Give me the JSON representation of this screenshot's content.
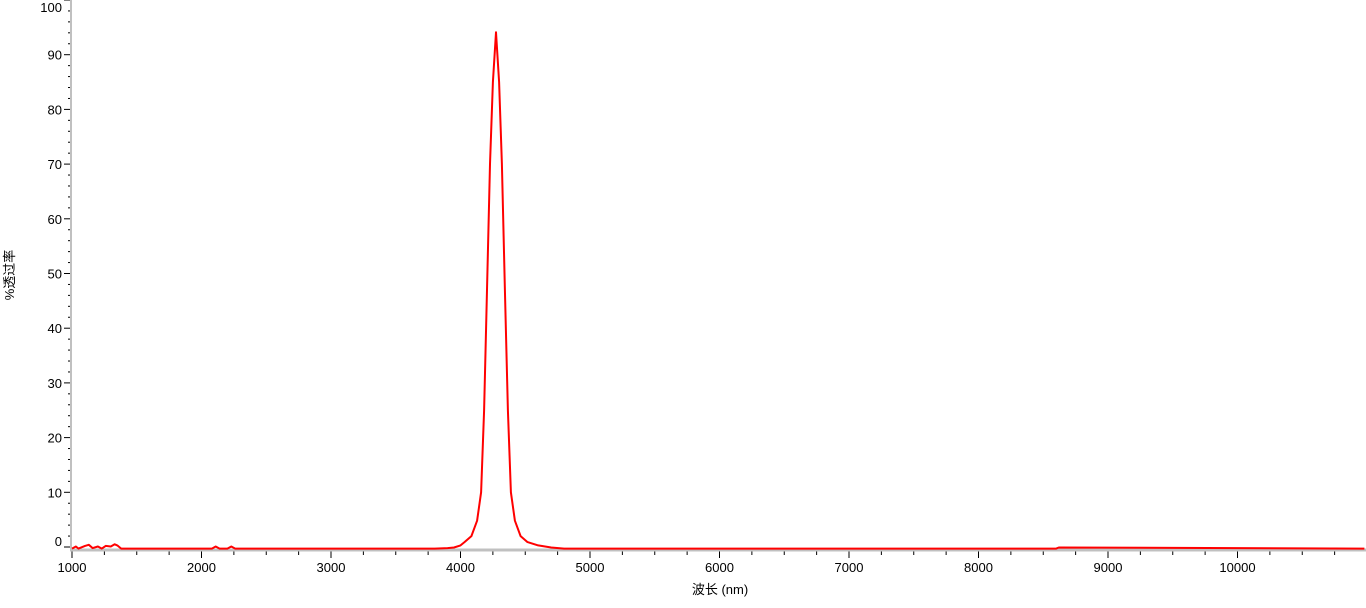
{
  "chart_data": {
    "type": "line",
    "title": "",
    "xlabel": "波长 (nm)",
    "ylabel": "%透过率",
    "xlim": [
      1000,
      10980
    ],
    "ylim": [
      -0.5,
      100
    ],
    "x_ticks": [
      1000,
      2000,
      3000,
      4000,
      5000,
      6000,
      7000,
      8000,
      9000,
      10000
    ],
    "y_ticks": [
      0,
      10,
      20,
      30,
      40,
      50,
      60,
      70,
      80,
      90,
      100
    ],
    "grid": false,
    "legend": "none",
    "series": [
      {
        "color": "#ff0000",
        "x": [
          1000,
          1030,
          1050,
          1100,
          1130,
          1160,
          1200,
          1230,
          1260,
          1300,
          1330,
          1350,
          1380,
          1420,
          2080,
          2110,
          2140,
          2200,
          2230,
          2260,
          3800,
          3900,
          3950,
          4000,
          4031,
          4084,
          4128,
          4159,
          4182,
          4205,
          4228,
          4250,
          4274,
          4298,
          4320,
          4343,
          4366,
          4389,
          4420,
          4464,
          4517,
          4600,
          4700,
          4800,
          5000,
          8600,
          8620,
          10980
        ],
        "y": [
          -0.3,
          0.1,
          -0.3,
          0.2,
          0.4,
          -0.2,
          0.1,
          -0.3,
          0.2,
          0.1,
          0.5,
          0.3,
          -0.3,
          -0.3,
          -0.3,
          0.1,
          -0.3,
          -0.3,
          0.1,
          -0.3,
          -0.3,
          -0.2,
          -0.1,
          0.3,
          0.9,
          2.0,
          4.8,
          10.0,
          25.0,
          47.0,
          70.0,
          85.0,
          94.1,
          85.0,
          70.0,
          47.0,
          25.0,
          10.0,
          4.8,
          2.0,
          0.9,
          0.3,
          -0.1,
          -0.3,
          -0.3,
          -0.3,
          -0.1,
          -0.3
        ]
      }
    ]
  }
}
